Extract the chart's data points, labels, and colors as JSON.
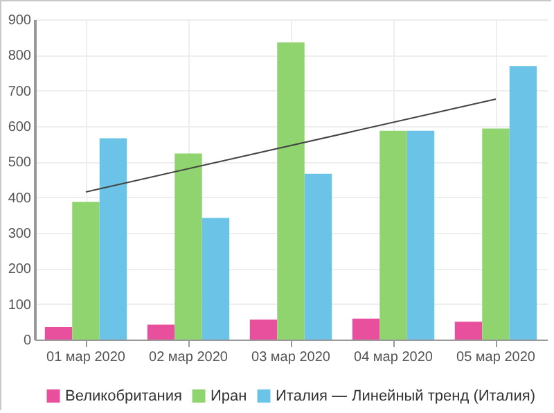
{
  "chart_data": {
    "type": "bar",
    "categories": [
      "01 мар 2020",
      "02 мар 2020",
      "03 мар 2020",
      "04 мар 2020",
      "05 мар 2020"
    ],
    "series": [
      {
        "name": "Великобритания",
        "color": "#e8509e",
        "values": [
          35,
          42,
          56,
          59,
          50
        ]
      },
      {
        "name": "Иран",
        "color": "#8fd46e",
        "values": [
          387,
          523,
          835,
          587,
          593
        ]
      },
      {
        "name": "Италия",
        "color": "#6bc4e8",
        "values": [
          566,
          342,
          466,
          587,
          769
        ]
      },
      {
        "name": "Линейный тренд (Италия)",
        "type": "line",
        "color": "#444444",
        "x": [
          "01 мар 2020",
          "05 мар 2020"
        ],
        "values": [
          415,
          676
        ]
      }
    ],
    "ylim": [
      0,
      900
    ],
    "yticks": [
      0,
      100,
      200,
      300,
      400,
      500,
      600,
      700,
      800,
      900
    ],
    "grid": true,
    "legend": "bottom"
  }
}
